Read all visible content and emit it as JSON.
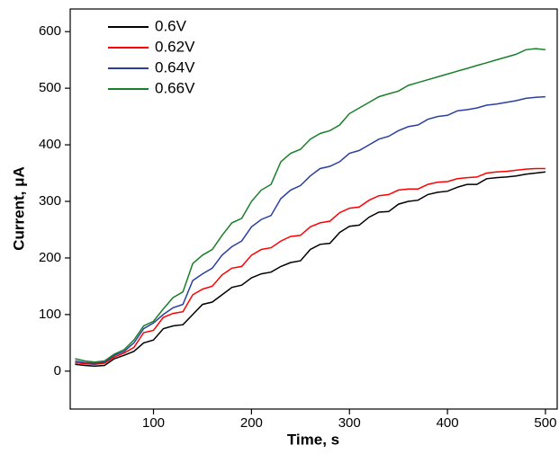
{
  "chart_data": {
    "type": "line",
    "x_label": "Time, s",
    "y_label": "Current, μA",
    "x": [
      20,
      30,
      40,
      50,
      60,
      70,
      80,
      90,
      100,
      110,
      120,
      130,
      140,
      150,
      160,
      170,
      180,
      190,
      200,
      210,
      220,
      230,
      240,
      250,
      260,
      270,
      280,
      290,
      300,
      310,
      320,
      330,
      340,
      350,
      360,
      370,
      380,
      390,
      400,
      410,
      420,
      430,
      440,
      450,
      460,
      470,
      480,
      490,
      500
    ],
    "series": [
      {
        "name": "0.6V",
        "color": "#000000",
        "values": [
          12,
          10,
          9,
          10,
          22,
          28,
          35,
          50,
          55,
          75,
          80,
          82,
          100,
          118,
          122,
          135,
          148,
          152,
          165,
          172,
          175,
          185,
          192,
          195,
          215,
          224,
          226,
          245,
          256,
          258,
          272,
          281,
          282,
          295,
          300,
          302,
          312,
          316,
          318,
          325,
          330,
          330,
          340,
          342,
          343,
          345,
          348,
          350,
          352
        ]
      },
      {
        "name": "0.62V",
        "color": "#ff0000",
        "values": [
          15,
          13,
          12,
          14,
          25,
          32,
          42,
          68,
          72,
          95,
          102,
          105,
          135,
          145,
          150,
          170,
          182,
          185,
          205,
          215,
          218,
          230,
          238,
          240,
          255,
          262,
          265,
          280,
          288,
          290,
          302,
          310,
          312,
          320,
          322,
          322,
          330,
          334,
          335,
          340,
          342,
          343,
          350,
          352,
          353,
          355,
          357,
          358,
          358
        ]
      },
      {
        "name": "0.64V",
        "color": "#2a3f9f",
        "values": [
          18,
          15,
          14,
          16,
          28,
          35,
          50,
          75,
          85,
          100,
          112,
          118,
          160,
          172,
          182,
          205,
          220,
          230,
          255,
          268,
          275,
          305,
          320,
          328,
          345,
          358,
          362,
          370,
          385,
          390,
          400,
          410,
          415,
          425,
          432,
          435,
          445,
          450,
          452,
          460,
          462,
          465,
          470,
          472,
          475,
          478,
          482,
          484,
          485
        ]
      },
      {
        "name": "0.66V",
        "color": "#1a7f2a",
        "values": [
          22,
          18,
          16,
          18,
          30,
          38,
          55,
          80,
          88,
          110,
          130,
          140,
          190,
          205,
          215,
          240,
          262,
          270,
          300,
          320,
          330,
          370,
          385,
          392,
          410,
          420,
          425,
          435,
          455,
          465,
          475,
          485,
          490,
          495,
          505,
          510,
          515,
          520,
          525,
          530,
          535,
          540,
          545,
          550,
          555,
          560,
          568,
          570,
          568
        ]
      }
    ],
    "xlim": [
      15,
      512
    ],
    "ylim": [
      -67,
      640
    ],
    "xticks": [
      100,
      200,
      300,
      400,
      500
    ],
    "yticks": [
      0,
      100,
      200,
      300,
      400,
      500,
      600
    ],
    "legend": "top-left"
  }
}
